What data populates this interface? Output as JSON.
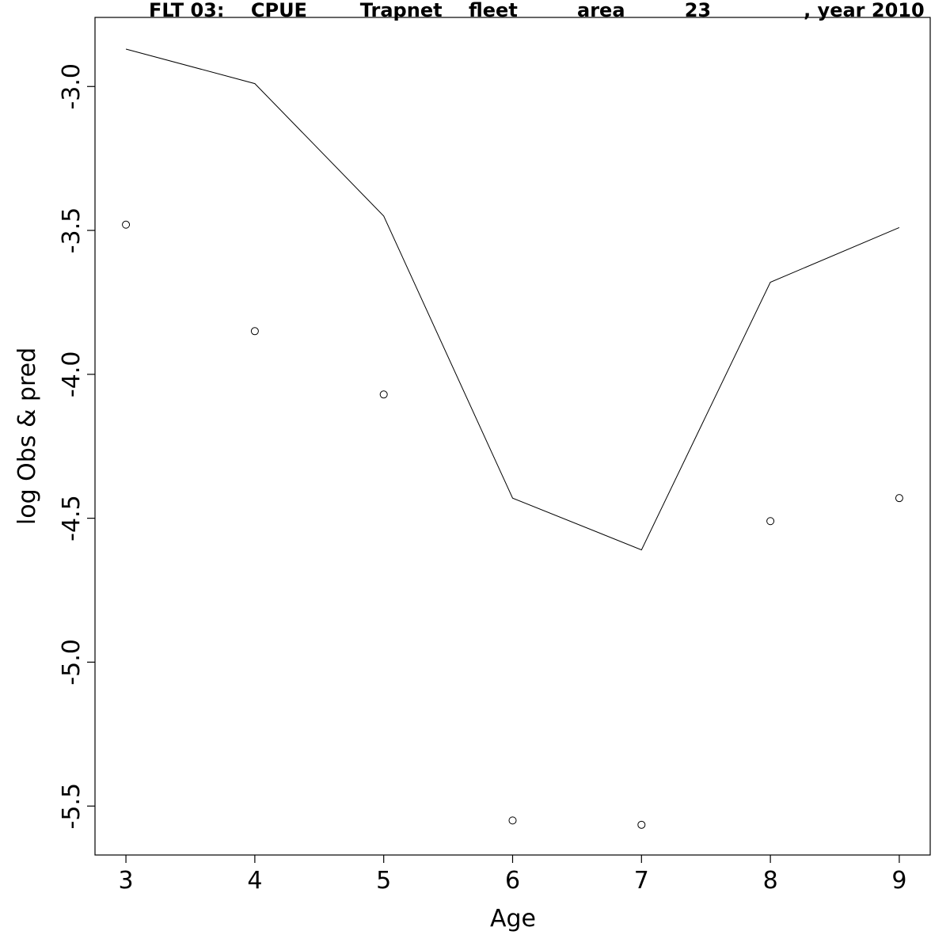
{
  "chart_data": {
    "type": "line",
    "title": "FLT 03:    CPUE        Trapnet    fleet         area         23              , year 2010",
    "xlabel": "Age",
    "ylabel": "log Obs & pred",
    "xlim": [
      2.76,
      9.24
    ],
    "ylim": [
      -5.67,
      -2.76
    ],
    "x_ticks": [
      3,
      4,
      5,
      6,
      7,
      8,
      9
    ],
    "x_tick_labels": [
      "3",
      "4",
      "5",
      "6",
      "7",
      "8",
      "9"
    ],
    "y_ticks": [
      -3.0,
      -3.5,
      -4.0,
      -4.5,
      -5.0,
      -5.5
    ],
    "y_tick_labels": [
      "-3.0",
      "-3.5",
      "-4.0",
      "-4.5",
      "-5.0",
      "-5.5"
    ],
    "grid": false,
    "series": [
      {
        "style": "line",
        "x": [
          3,
          4,
          5,
          6,
          7,
          8,
          9
        ],
        "values": [
          -2.87,
          -2.99,
          -3.45,
          -4.43,
          -4.61,
          -3.68,
          -3.49
        ]
      },
      {
        "style": "points",
        "x": [
          3,
          4,
          5,
          6,
          7,
          8,
          9
        ],
        "values": [
          -3.48,
          -3.85,
          -4.07,
          -5.55,
          -5.565,
          -4.51,
          -4.43
        ]
      }
    ]
  }
}
